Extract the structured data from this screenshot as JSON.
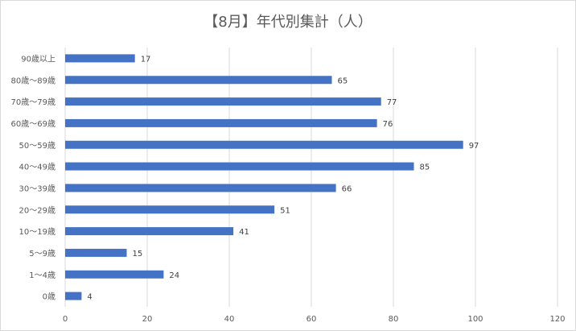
{
  "chart_data": {
    "type": "bar",
    "orientation": "horizontal",
    "title": "【8月】年代別集計（人）",
    "xlabel": "",
    "ylabel": "",
    "categories": [
      "90歳以上",
      "80歳～89歳",
      "70歳～79歳",
      "60歳～69歳",
      "50～59歳",
      "40～49歳",
      "30～39歳",
      "20～29歳",
      "10～19歳",
      "5～9歳",
      "1～4歳",
      "0歳"
    ],
    "values": [
      17,
      65,
      77,
      76,
      97,
      85,
      66,
      51,
      41,
      15,
      24,
      4
    ],
    "xlim": [
      0,
      120
    ],
    "xticks": [
      0,
      20,
      40,
      60,
      80,
      100,
      120
    ],
    "grid": true,
    "legend": "none",
    "bar_color": "#4472c4"
  }
}
